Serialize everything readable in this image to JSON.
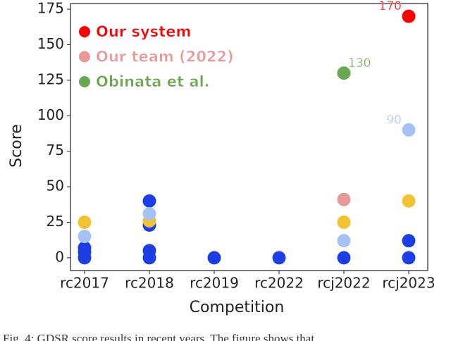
{
  "chart_data": {
    "type": "scatter",
    "categories": [
      "rc2017",
      "rc2018",
      "rc2019",
      "rc2022",
      "rcj2022",
      "rcj2023"
    ],
    "xlabel": "Competition",
    "ylabel": "Score",
    "ylim": [
      -9,
      179
    ],
    "yticks": [
      0,
      25,
      50,
      75,
      100,
      125,
      150,
      175
    ],
    "grid": false,
    "legend": "upper left",
    "series": [
      {
        "name": "Our system",
        "color": "#ff0000",
        "values": [
          null,
          null,
          null,
          null,
          null,
          170
        ],
        "value_labels": [
          null,
          null,
          null,
          null,
          null,
          "170"
        ]
      },
      {
        "name": "Our team (2022)",
        "color": "#ea9999",
        "values": [
          null,
          null,
          null,
          null,
          41,
          null
        ]
      },
      {
        "name": "Obinata et al.",
        "color": "#6aa84f",
        "values": [
          null,
          null,
          null,
          null,
          130,
          null
        ],
        "value_labels": [
          null,
          null,
          null,
          null,
          "130",
          null
        ]
      },
      {
        "color": "#1c3ee6",
        "values": [
          0,
          0,
          0,
          0,
          0,
          0
        ]
      },
      {
        "color": "#1c3ee6",
        "values": [
          4,
          5,
          null,
          null,
          null,
          12
        ]
      },
      {
        "color": "#1c3ee6",
        "values": [
          7,
          23,
          null,
          null,
          null,
          null
        ]
      },
      {
        "color": "#1c3ee6",
        "values": [
          null,
          40,
          null,
          null,
          null,
          null
        ]
      },
      {
        "color": "#f1c232",
        "values": [
          25,
          26,
          null,
          null,
          25,
          40
        ]
      },
      {
        "color": "#a4c2f4",
        "values": [
          15,
          31,
          null,
          null,
          12,
          90
        ],
        "value_labels": [
          null,
          null,
          null,
          null,
          null,
          "90"
        ]
      }
    ]
  },
  "caption": "Fig. 4: GDSR score results in recent years. The figure shows that"
}
